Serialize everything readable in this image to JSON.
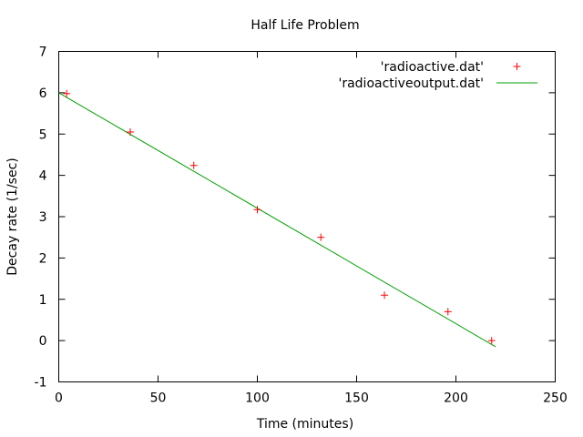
{
  "chart_data": {
    "type": "scatter",
    "title": "Half Life Problem",
    "xlabel": "Time (minutes)",
    "ylabel": "Decay rate (1/sec)",
    "xlim": [
      0,
      250
    ],
    "ylim": [
      -1,
      7
    ],
    "xticks": [
      0,
      50,
      100,
      150,
      200,
      250
    ],
    "yticks": [
      -1,
      0,
      1,
      2,
      3,
      4,
      5,
      6,
      7
    ],
    "grid": false,
    "legend_position": "top-right",
    "series": [
      {
        "name": "'radioactive.dat'",
        "kind": "points",
        "marker": "plus",
        "color": "#ff0000",
        "x": [
          4,
          36,
          68,
          100,
          132,
          164,
          196,
          218
        ],
        "y": [
          5.98,
          5.05,
          4.24,
          3.17,
          2.5,
          1.1,
          0.7,
          0.0
        ]
      },
      {
        "name": "'radioactiveoutput.dat'",
        "kind": "line",
        "color": "#00a000",
        "x": [
          0,
          220
        ],
        "y": [
          6.0,
          -0.15
        ]
      }
    ]
  }
}
